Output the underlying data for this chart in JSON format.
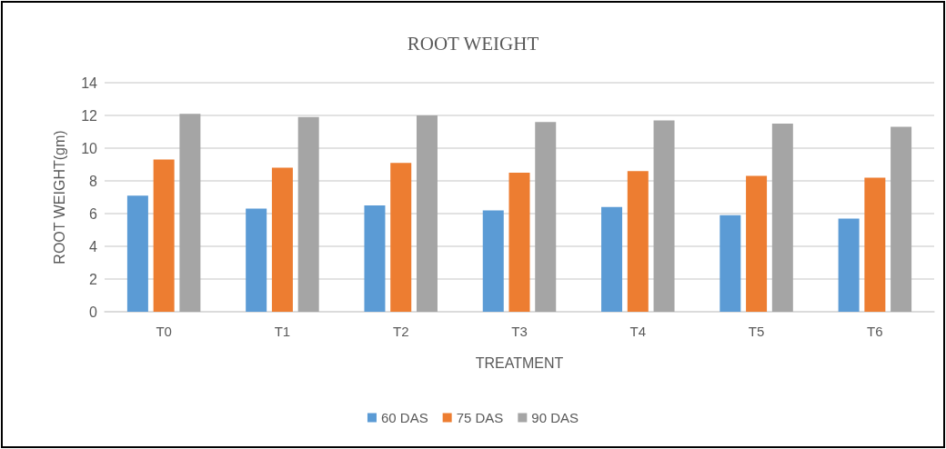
{
  "chart_data": {
    "type": "bar",
    "title": "ROOT WEIGHT",
    "xlabel": "TREATMENT",
    "ylabel": "ROOT WEIGHT(gm)",
    "categories": [
      "T0",
      "T1",
      "T2",
      "T3",
      "T4",
      "T5",
      "T6"
    ],
    "series": [
      {
        "name": "60 DAS",
        "color": "#5b9bd5",
        "values": [
          7.1,
          6.3,
          6.5,
          6.2,
          6.4,
          5.9,
          5.7
        ]
      },
      {
        "name": "75 DAS",
        "color": "#ed7d31",
        "values": [
          9.3,
          8.8,
          9.1,
          8.5,
          8.6,
          8.3,
          8.2
        ]
      },
      {
        "name": "90 DAS",
        "color": "#a5a5a5",
        "values": [
          12.1,
          11.9,
          12.0,
          11.6,
          11.7,
          11.5,
          11.3
        ]
      }
    ],
    "ylim": [
      0,
      14
    ],
    "yticks": [
      0,
      2,
      4,
      6,
      8,
      10,
      12,
      14
    ],
    "grid": "y",
    "legend": "bottom"
  }
}
